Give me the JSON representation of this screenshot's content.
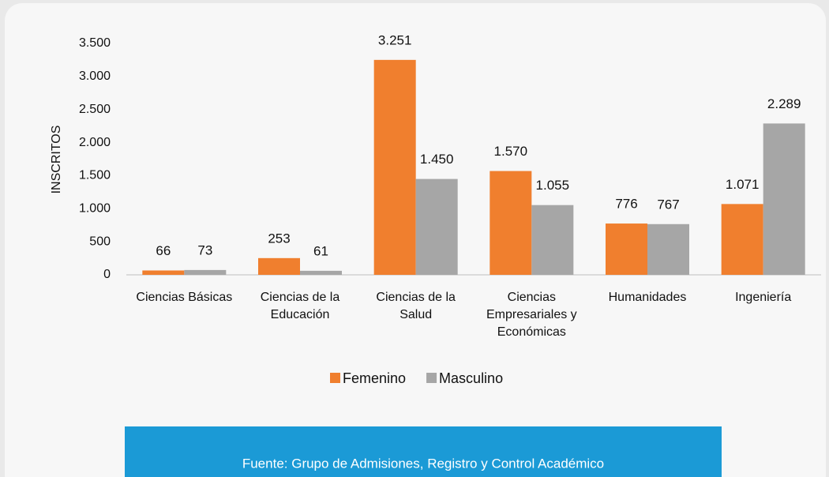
{
  "chart_data": {
    "type": "bar",
    "y_label": "INSCRITOS",
    "categories": [
      "Ciencias Básicas",
      "Ciencias de la Educación",
      "Ciencias de la Salud",
      "Ciencias Empresariales y Económicas",
      "Humanidades",
      "Ingeniería"
    ],
    "series": [
      {
        "name": "Femenino",
        "color": "#f07f2e",
        "values": [
          66,
          253,
          3251,
          1570,
          776,
          1071
        ],
        "value_labels": [
          "66",
          "253",
          "3.251",
          "1.570",
          "776",
          "1.071"
        ]
      },
      {
        "name": "Masculino",
        "color": "#a6a6a6",
        "values": [
          73,
          61,
          1450,
          1055,
          767,
          2289
        ],
        "value_labels": [
          "73",
          "61",
          "1.450",
          "1.055",
          "767",
          "2.289"
        ]
      }
    ],
    "ylim": [
      0,
      3500
    ],
    "yticks": [
      0,
      500,
      {
        "value": 1000,
        "label": "1.000"
      },
      {
        "value": 1500,
        "label": "1.500"
      },
      {
        "value": 2000,
        "label": "2.000"
      },
      {
        "value": 2500,
        "label": "2.500"
      },
      {
        "value": 3000,
        "label": "3.000"
      },
      {
        "value": 3500,
        "label": "3.500"
      }
    ],
    "grid": false,
    "legend": "bottom",
    "source": "Fuente: Grupo de Admisiones, Registro y Control Académico"
  }
}
